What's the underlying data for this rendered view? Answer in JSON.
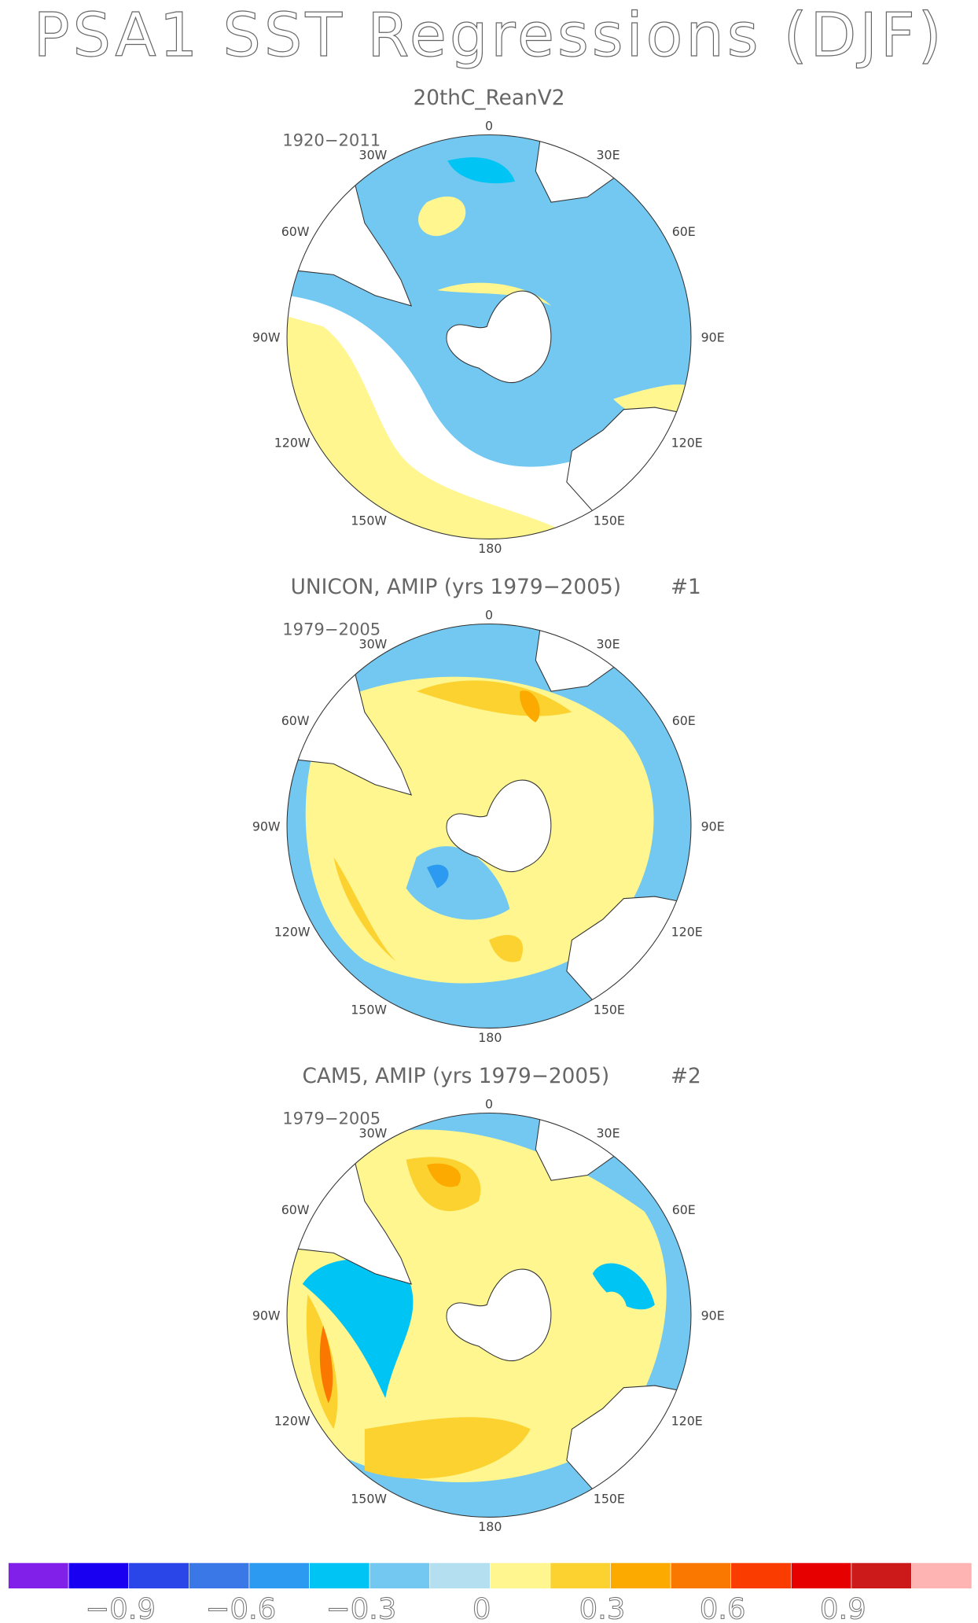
{
  "title": "PSA1 SST Regressions (DJF)",
  "map_labels": [
    "0",
    "30E",
    "60E",
    "90E",
    "120E",
    "150E",
    "180",
    "150W",
    "120W",
    "90W",
    "60W",
    "30W"
  ],
  "panels": [
    {
      "title": "20thC_ReanV2",
      "period": "1920−2011"
    },
    {
      "title": "UNICON, AMIP (yrs 1979−2005)",
      "number": "#1",
      "period": "1979−2005"
    },
    {
      "title": "CAM5, AMIP (yrs 1979−2005)",
      "number": "#2",
      "period": "1979−2005"
    }
  ],
  "colorbar": {
    "colors": [
      "#8020e8",
      "#1a00f0",
      "#2a45e8",
      "#3a78e8",
      "#2b9af0",
      "#00c4f4",
      "#72c8f0",
      "#b4dff0",
      "#fff690",
      "#fcd230",
      "#fcaa00",
      "#fb7800",
      "#fa3c00",
      "#e60000",
      "#cc1a1a",
      "#ffb4b4"
    ],
    "lim": [
      -1.2,
      1.2
    ],
    "ticks": [
      {
        "value": -0.9,
        "label": "−0.9"
      },
      {
        "value": -0.6,
        "label": "−0.6"
      },
      {
        "value": -0.3,
        "label": "−0.3"
      },
      0,
      0.3,
      0.6,
      0.9
    ]
  }
}
